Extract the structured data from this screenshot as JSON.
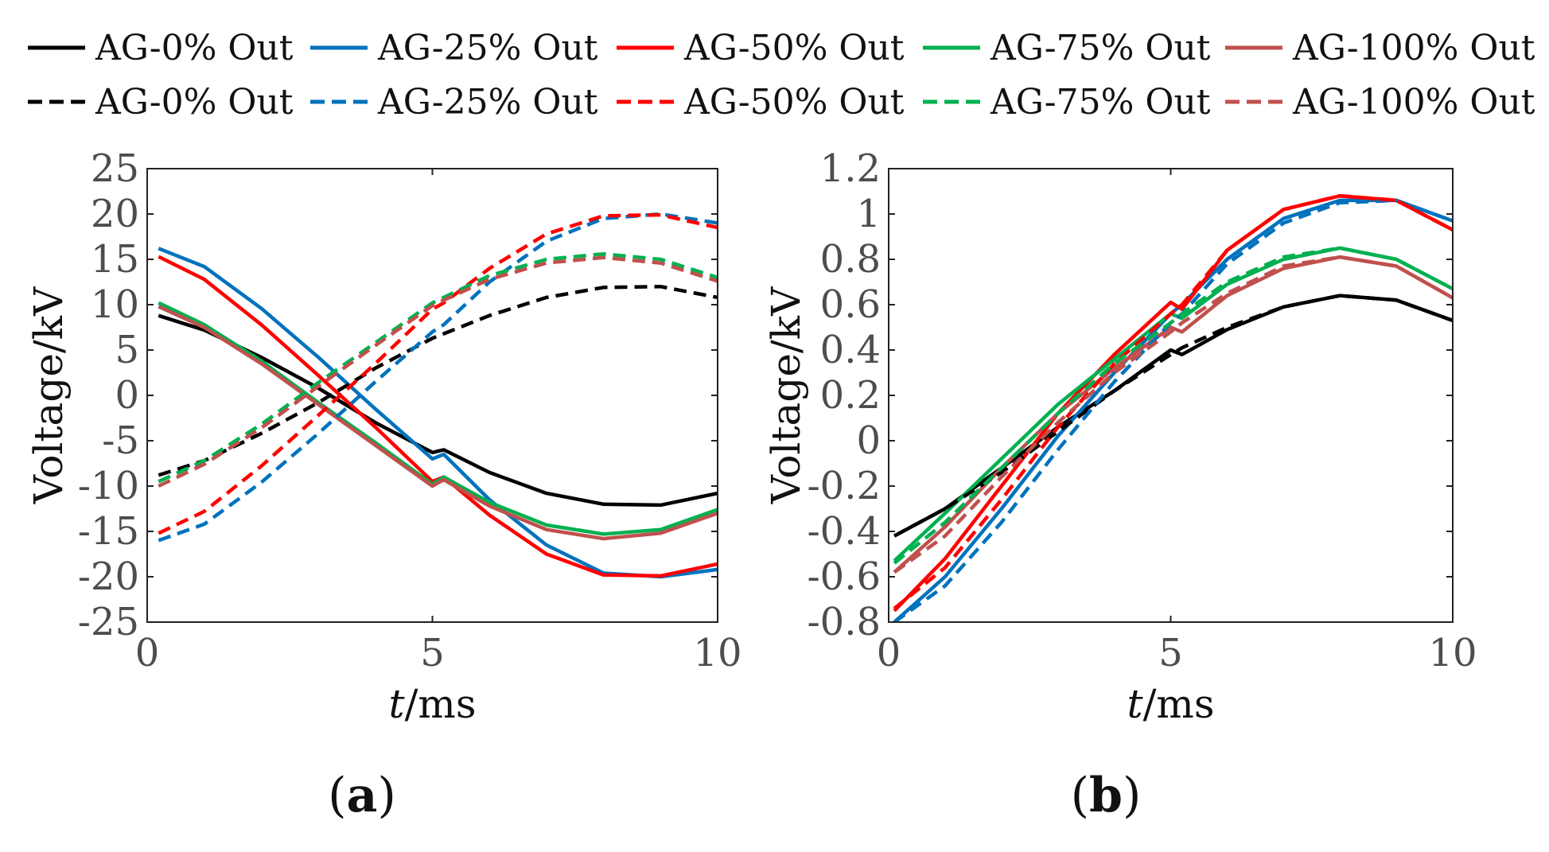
{
  "legend": {
    "solid_row": [
      "AG-0% Out",
      "AG-25% Out",
      "AG-50% Out",
      "AG-75% Out",
      "AG-100% Out"
    ],
    "dashed_row": [
      "AG-0% Out",
      "AG-25% Out",
      "AG-50% Out",
      "AG-75% Out",
      "AG-100% Out"
    ]
  },
  "colors": [
    "#000000",
    "#0072bd",
    "#ff0000",
    "#00b050",
    "#c0504d"
  ],
  "chart_data": [
    {
      "type": "line",
      "panel_label": {
        "open": "(",
        "letter": "a",
        "close": ")"
      },
      "xlabel": {
        "italic": "t",
        "rest": "/ms"
      },
      "ylabel": "Voltage/kV",
      "xlim": [
        0,
        10
      ],
      "ylim": [
        -25,
        25
      ],
      "xticks": [
        "0",
        "5",
        "10"
      ],
      "yticks": [
        "25",
        "20",
        "15",
        "10",
        "5",
        "0",
        "-5",
        "-10",
        "-15",
        "-20",
        "-25"
      ],
      "grid": false,
      "x": [
        0.2,
        1,
        2,
        3,
        4,
        5,
        5.2,
        6,
        7,
        8,
        9,
        10
      ],
      "series": [
        {
          "name": "AG-0% Out",
          "style": "solid",
          "color": "#000000",
          "values": [
            8.8,
            7.2,
            4.2,
            0.8,
            -3,
            -6.3,
            -6,
            -8.5,
            -10.8,
            -12,
            -12.1,
            -10.8
          ]
        },
        {
          "name": "AG-25% Out",
          "style": "solid",
          "color": "#0072bd",
          "values": [
            16.2,
            14.2,
            9.6,
            4.2,
            -1.5,
            -7,
            -6.5,
            -11.5,
            -16.5,
            -19.6,
            -20,
            -19.2
          ]
        },
        {
          "name": "AG-50% Out",
          "style": "solid",
          "color": "#ff0000",
          "values": [
            15.3,
            12.8,
            7.8,
            2.2,
            -3.5,
            -9.5,
            -9,
            -13.2,
            -17.5,
            -19.8,
            -19.9,
            -18.6
          ]
        },
        {
          "name": "AG-75% Out",
          "style": "solid",
          "color": "#00b050",
          "values": [
            10.2,
            7.8,
            3.8,
            -0.8,
            -5.2,
            -9.8,
            -9,
            -11.8,
            -14.3,
            -15.3,
            -14.8,
            -12.6
          ]
        },
        {
          "name": "AG-100% Out",
          "style": "solid",
          "color": "#c0504d",
          "values": [
            9.8,
            7.5,
            3.5,
            -1,
            -5.5,
            -10,
            -9.3,
            -12.2,
            -14.8,
            -15.8,
            -15.2,
            -13
          ]
        },
        {
          "name": "AG-0% Out",
          "style": "dashed",
          "color": "#000000",
          "values": [
            -8.8,
            -7.2,
            -4.2,
            -0.8,
            3,
            6.3,
            6.8,
            8.8,
            10.8,
            11.9,
            12,
            10.8
          ]
        },
        {
          "name": "AG-25% Out",
          "style": "dashed",
          "color": "#0072bd",
          "values": [
            -16,
            -14.2,
            -9.6,
            -4.2,
            1.5,
            7,
            7.8,
            12.5,
            17,
            19.5,
            20,
            19
          ]
        },
        {
          "name": "AG-50% Out",
          "style": "dashed",
          "color": "#ff0000",
          "values": [
            -15.2,
            -12.8,
            -7.8,
            -2.2,
            3.5,
            9.5,
            10.2,
            14,
            17.8,
            19.8,
            19.9,
            18.5
          ]
        },
        {
          "name": "AG-75% Out",
          "style": "dashed",
          "color": "#00b050",
          "values": [
            -9.5,
            -7.2,
            -3.2,
            1.4,
            5.8,
            10.2,
            10.8,
            13.2,
            15,
            15.6,
            15,
            13
          ]
        },
        {
          "name": "AG-100% Out",
          "style": "dashed",
          "color": "#c0504d",
          "values": [
            -10,
            -7.6,
            -3.6,
            1,
            5.5,
            9.9,
            10.5,
            12.8,
            14.6,
            15.2,
            14.6,
            12.6
          ]
        }
      ]
    },
    {
      "type": "line",
      "panel_label": {
        "open": "(",
        "letter": "b",
        "close": ")"
      },
      "xlabel": {
        "italic": "t",
        "rest": "/ms"
      },
      "ylabel": "Voltage/kV",
      "xlim": [
        0,
        10
      ],
      "ylim": [
        -0.8,
        1.2
      ],
      "xticks": [
        "0",
        "5",
        "10"
      ],
      "yticks": [
        "1.2",
        "1",
        "0.8",
        "0.6",
        "0.4",
        "0.2",
        "0",
        "-0.2",
        "-0.4",
        "-0.6",
        "-0.8"
      ],
      "grid": false,
      "x": [
        0.1,
        1,
        2,
        3,
        4,
        5,
        5.2,
        6,
        7,
        8,
        9,
        10
      ],
      "series": [
        {
          "name": "AG-0% Out",
          "style": "solid",
          "color": "#000000",
          "values": [
            -0.42,
            -0.3,
            -0.12,
            0.06,
            0.22,
            0.4,
            0.38,
            0.49,
            0.59,
            0.64,
            0.62,
            0.53
          ]
        },
        {
          "name": "AG-25% Out",
          "style": "solid",
          "color": "#0072bd",
          "values": [
            -0.8,
            -0.6,
            -0.3,
            0.02,
            0.3,
            0.56,
            0.6,
            0.8,
            0.98,
            1.06,
            1.06,
            0.97
          ]
        },
        {
          "name": "AG-50% Out",
          "style": "solid",
          "color": "#ff0000",
          "values": [
            -0.75,
            -0.52,
            -0.2,
            0.12,
            0.38,
            0.61,
            0.58,
            0.84,
            1.02,
            1.08,
            1.06,
            0.93
          ]
        },
        {
          "name": "AG-75% Out",
          "style": "solid",
          "color": "#00b050",
          "values": [
            -0.53,
            -0.32,
            -0.08,
            0.16,
            0.36,
            0.56,
            0.54,
            0.69,
            0.8,
            0.85,
            0.8,
            0.67
          ]
        },
        {
          "name": "AG-100% Out",
          "style": "solid",
          "color": "#c0504d",
          "values": [
            -0.58,
            -0.38,
            -0.12,
            0.12,
            0.32,
            0.5,
            0.48,
            0.64,
            0.76,
            0.81,
            0.77,
            0.63
          ]
        },
        {
          "name": "AG-0% Out",
          "style": "dashed",
          "color": "#000000",
          "values": [
            -0.42,
            -0.3,
            -0.14,
            0.04,
            0.22,
            0.38,
            0.41,
            0.5,
            0.59,
            0.64,
            0.62,
            0.53
          ]
        },
        {
          "name": "AG-25% Out",
          "style": "dashed",
          "color": "#0072bd",
          "values": [
            -0.8,
            -0.64,
            -0.36,
            -0.04,
            0.26,
            0.52,
            0.56,
            0.78,
            0.96,
            1.05,
            1.06,
            0.97
          ]
        },
        {
          "name": "AG-50% Out",
          "style": "dashed",
          "color": "#ff0000",
          "values": [
            -0.74,
            -0.56,
            -0.26,
            0.06,
            0.34,
            0.56,
            0.6,
            0.84,
            1.02,
            1.08,
            1.06,
            0.93
          ]
        },
        {
          "name": "AG-75% Out",
          "style": "dashed",
          "color": "#00b050",
          "values": [
            -0.54,
            -0.36,
            -0.12,
            0.12,
            0.34,
            0.52,
            0.56,
            0.7,
            0.81,
            0.85,
            0.8,
            0.67
          ]
        },
        {
          "name": "AG-100% Out",
          "style": "dashed",
          "color": "#c0504d",
          "values": [
            -0.58,
            -0.42,
            -0.16,
            0.08,
            0.3,
            0.48,
            0.52,
            0.65,
            0.77,
            0.81,
            0.77,
            0.63
          ]
        }
      ]
    }
  ]
}
